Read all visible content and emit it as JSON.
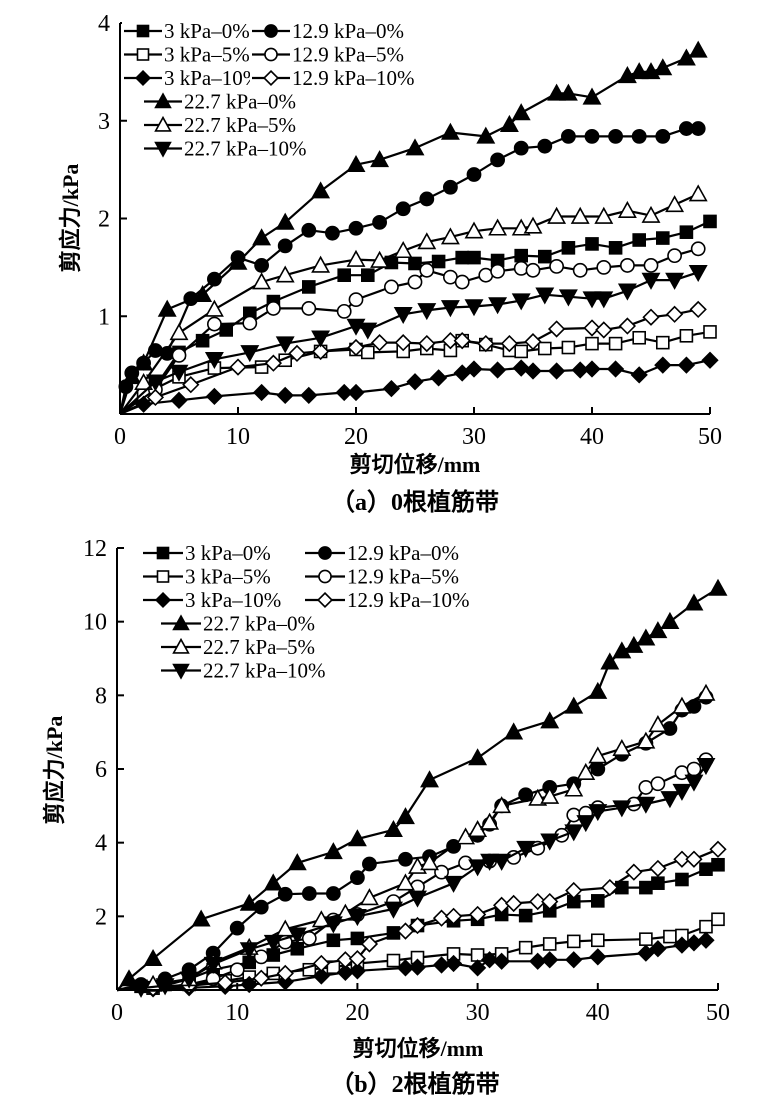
{
  "chart_data": [
    {
      "type": "line",
      "caption": "（a）0根植筋带",
      "xlabel": "剪切位移/mm",
      "ylabel": "剪应力/kPa",
      "xlim": [
        0,
        50
      ],
      "ylim": [
        0,
        4
      ],
      "xticks": [
        "0",
        "10",
        "20",
        "30",
        "40",
        "50"
      ],
      "yticks": [
        "1",
        "2",
        "3",
        "4"
      ],
      "xtick_values": [
        0,
        10,
        20,
        30,
        40,
        50
      ],
      "ytick_values": [
        1,
        2,
        3,
        4
      ],
      "legend": "top-left",
      "series": [
        {
          "name": "3 kPa–0%",
          "marker": "square-filled",
          "x": [
            0,
            3,
            5,
            7,
            9,
            11,
            13,
            16,
            19,
            21,
            23,
            25,
            27,
            29,
            30,
            32,
            34,
            36,
            38,
            40,
            42,
            44,
            46,
            48,
            50
          ],
          "y": [
            0,
            0.28,
            0.63,
            0.75,
            0.86,
            1.03,
            1.15,
            1.3,
            1.42,
            1.42,
            1.55,
            1.54,
            1.56,
            1.6,
            1.6,
            1.57,
            1.62,
            1.61,
            1.7,
            1.74,
            1.7,
            1.78,
            1.8,
            1.86,
            1.97
          ]
        },
        {
          "name": "3 kPa–5%",
          "marker": "square-open",
          "x": [
            0,
            2,
            5,
            8,
            12,
            14,
            17,
            20,
            21,
            24,
            26,
            28,
            29,
            31,
            33,
            34,
            36,
            38,
            40,
            42,
            44,
            46,
            48,
            50
          ],
          "y": [
            0,
            0.2,
            0.38,
            0.47,
            0.48,
            0.55,
            0.64,
            0.66,
            0.63,
            0.64,
            0.67,
            0.65,
            0.75,
            0.71,
            0.65,
            0.64,
            0.67,
            0.68,
            0.72,
            0.72,
            0.78,
            0.73,
            0.8,
            0.84
          ]
        },
        {
          "name": "3 kPa–10%",
          "marker": "diamond-filled",
          "x": [
            0,
            2,
            5,
            8,
            12,
            14,
            16,
            19,
            20,
            23,
            25,
            27,
            29,
            30,
            32,
            34,
            35,
            37,
            39,
            40,
            42,
            44,
            46,
            48,
            50
          ],
          "y": [
            0,
            0.1,
            0.14,
            0.18,
            0.22,
            0.19,
            0.19,
            0.22,
            0.22,
            0.26,
            0.33,
            0.37,
            0.42,
            0.46,
            0.45,
            0.47,
            0.44,
            0.44,
            0.45,
            0.46,
            0.46,
            0.4,
            0.5,
            0.5,
            0.55
          ]
        },
        {
          "name": "12.9 kPa–0%",
          "marker": "circle-filled",
          "x": [
            0,
            0.5,
            1,
            2,
            3,
            4,
            6,
            8,
            10,
            12,
            14,
            16,
            18,
            20,
            22,
            24,
            26,
            28,
            30,
            32,
            34,
            36,
            38,
            40,
            42,
            44,
            46,
            48,
            49
          ],
          "y": [
            0,
            0.28,
            0.42,
            0.52,
            0.65,
            0.62,
            1.18,
            1.38,
            1.6,
            1.52,
            1.72,
            1.88,
            1.85,
            1.9,
            1.96,
            2.1,
            2.2,
            2.32,
            2.45,
            2.6,
            2.72,
            2.74,
            2.84,
            2.84,
            2.84,
            2.84,
            2.84,
            2.92,
            2.92
          ]
        },
        {
          "name": "12.9 kPa–5%",
          "marker": "circle-open",
          "x": [
            0,
            3,
            5,
            8,
            11,
            13,
            16,
            19,
            20,
            23,
            25,
            26,
            28,
            29,
            31,
            32,
            34,
            35,
            37,
            39,
            41,
            43,
            45,
            47,
            49
          ],
          "y": [
            0,
            0.25,
            0.6,
            0.92,
            0.93,
            1.08,
            1.08,
            1.05,
            1.17,
            1.3,
            1.35,
            1.47,
            1.4,
            1.35,
            1.42,
            1.46,
            1.49,
            1.47,
            1.51,
            1.47,
            1.5,
            1.52,
            1.52,
            1.62,
            1.69
          ]
        },
        {
          "name": "12.9 kPa–10%",
          "marker": "diamond-open",
          "x": [
            0,
            3,
            6,
            10,
            13,
            15,
            17,
            20,
            22,
            24,
            26,
            28,
            29,
            31,
            33,
            35,
            37,
            40,
            41,
            43,
            45,
            47,
            49
          ],
          "y": [
            0,
            0.17,
            0.3,
            0.48,
            0.52,
            0.62,
            0.64,
            0.68,
            0.73,
            0.73,
            0.72,
            0.75,
            0.75,
            0.72,
            0.72,
            0.74,
            0.87,
            0.88,
            0.86,
            0.9,
            0.99,
            1.02,
            1.07
          ]
        },
        {
          "name": "22.7 kPa–0%",
          "marker": "triangle-up-filled",
          "x": [
            0,
            1,
            2,
            4,
            7,
            10,
            12,
            14,
            17,
            20,
            22,
            25,
            28,
            31,
            33,
            34,
            37,
            38,
            40,
            43,
            44,
            45,
            46,
            48,
            49
          ],
          "y": [
            0,
            0.38,
            0.52,
            1.07,
            1.22,
            1.55,
            1.8,
            1.96,
            2.28,
            2.55,
            2.6,
            2.72,
            2.88,
            2.84,
            2.96,
            3.08,
            3.28,
            3.28,
            3.24,
            3.46,
            3.5,
            3.5,
            3.54,
            3.64,
            3.72
          ]
        },
        {
          "name": "22.7 kPa–5%",
          "marker": "triangle-up-open",
          "x": [
            0,
            2,
            5,
            8,
            12,
            14,
            17,
            20,
            22,
            24,
            26,
            28,
            30,
            32,
            34,
            35,
            37,
            39,
            41,
            43,
            45,
            47,
            49
          ],
          "y": [
            0,
            0.32,
            0.83,
            1.07,
            1.35,
            1.42,
            1.52,
            1.58,
            1.57,
            1.67,
            1.76,
            1.81,
            1.87,
            1.9,
            1.9,
            1.92,
            2.02,
            2.02,
            2.02,
            2.08,
            2.03,
            2.14,
            2.25
          ]
        },
        {
          "name": "22.7 kPa–10%",
          "marker": "triangle-down-filled",
          "x": [
            0,
            3,
            5,
            8,
            11,
            14,
            17,
            20,
            21,
            24,
            26,
            28,
            30,
            32,
            34,
            36,
            38,
            40,
            41,
            43,
            45,
            47,
            49
          ],
          "y": [
            0,
            0.33,
            0.43,
            0.56,
            0.63,
            0.72,
            0.78,
            0.9,
            0.86,
            1.02,
            1.06,
            1.09,
            1.1,
            1.12,
            1.16,
            1.22,
            1.2,
            1.18,
            1.18,
            1.26,
            1.37,
            1.37,
            1.45
          ]
        }
      ]
    },
    {
      "type": "line",
      "caption": "（b）2根植筋带",
      "xlabel": "剪切位移/mm",
      "ylabel": "剪应力/kPa",
      "xlim": [
        0,
        50
      ],
      "ylim": [
        0,
        12
      ],
      "xticks": [
        "0",
        "10",
        "20",
        "30",
        "40",
        "50"
      ],
      "yticks": [
        "2",
        "4",
        "6",
        "8",
        "10",
        "12"
      ],
      "xtick_values": [
        0,
        10,
        20,
        30,
        40,
        50
      ],
      "ytick_values": [
        2,
        4,
        6,
        8,
        10,
        12
      ],
      "legend": "top-left",
      "series": [
        {
          "name": "3 kPa–0%",
          "marker": "square-filled",
          "x": [
            0,
            2,
            4,
            6,
            8,
            11,
            13,
            15,
            18,
            20,
            23,
            25,
            28,
            30,
            32,
            34,
            36,
            38,
            40,
            42,
            44,
            45,
            47,
            49,
            50
          ],
          "y": [
            0,
            0.1,
            0.15,
            0.3,
            0.55,
            0.75,
            0.95,
            1.12,
            1.35,
            1.4,
            1.55,
            1.75,
            1.88,
            1.92,
            2.05,
            2.02,
            2.15,
            2.4,
            2.42,
            2.78,
            2.78,
            2.9,
            3.0,
            3.28,
            3.4
          ]
        },
        {
          "name": "3 kPa–5%",
          "marker": "square-open",
          "x": [
            0,
            3,
            6,
            9,
            11,
            13,
            16,
            18,
            20,
            23,
            25,
            28,
            30,
            32,
            34,
            36,
            38,
            40,
            44,
            46,
            47,
            49,
            50
          ],
          "y": [
            0,
            0.05,
            0.15,
            0.25,
            0.35,
            0.45,
            0.55,
            0.62,
            0.72,
            0.8,
            0.88,
            0.98,
            0.95,
            0.98,
            1.15,
            1.25,
            1.32,
            1.35,
            1.38,
            1.45,
            1.48,
            1.72,
            1.92
          ]
        },
        {
          "name": "3 kPa–10%",
          "marker": "diamond-filled",
          "x": [
            0,
            3,
            6,
            9,
            11,
            14,
            17,
            19,
            20,
            24,
            25,
            27,
            28,
            30,
            31,
            32,
            35,
            36,
            38,
            40,
            44,
            45,
            47,
            48,
            49
          ],
          "y": [
            0,
            0.03,
            0.06,
            0.1,
            0.15,
            0.22,
            0.38,
            0.48,
            0.52,
            0.6,
            0.62,
            0.68,
            0.72,
            0.6,
            0.82,
            0.78,
            0.78,
            0.82,
            0.82,
            0.9,
            1.0,
            1.12,
            1.22,
            1.28,
            1.35
          ]
        },
        {
          "name": "12.9 kPa–0%",
          "marker": "circle-filled",
          "x": [
            0,
            2,
            4,
            6,
            8,
            10,
            12,
            14,
            16,
            18,
            20,
            21,
            24,
            26,
            28,
            30,
            31,
            32,
            34,
            36,
            38,
            40,
            42,
            44,
            46,
            47,
            48,
            49
          ],
          "y": [
            0,
            0.15,
            0.3,
            0.55,
            1.0,
            1.68,
            2.25,
            2.6,
            2.62,
            2.62,
            3.05,
            3.42,
            3.55,
            3.62,
            3.9,
            4.2,
            4.5,
            5.0,
            5.3,
            5.5,
            5.6,
            6.0,
            6.4,
            6.7,
            7.1,
            7.6,
            7.7,
            7.95
          ]
        },
        {
          "name": "12.9 kPa–5%",
          "marker": "circle-open",
          "x": [
            0,
            3,
            6,
            8,
            10,
            12,
            14,
            16,
            18,
            20,
            23,
            25,
            27,
            29,
            31,
            33,
            35,
            37,
            38,
            39,
            40,
            43,
            44,
            45,
            47,
            48,
            49
          ],
          "y": [
            0,
            0.06,
            0.15,
            0.3,
            0.55,
            0.9,
            1.3,
            1.4,
            1.9,
            2.05,
            2.4,
            2.8,
            3.2,
            3.45,
            3.5,
            3.6,
            3.85,
            4.2,
            4.75,
            4.8,
            4.95,
            5.05,
            5.5,
            5.6,
            5.9,
            6.0,
            6.25
          ]
        },
        {
          "name": "12.9 kPa–10%",
          "marker": "diamond-open",
          "x": [
            0,
            3,
            6,
            9,
            12,
            14,
            17,
            19,
            20,
            21,
            24,
            25,
            27,
            28,
            30,
            32,
            33,
            35,
            36,
            38,
            41,
            43,
            45,
            47,
            48,
            50
          ],
          "y": [
            0,
            0.05,
            0.12,
            0.2,
            0.32,
            0.45,
            0.72,
            0.82,
            0.85,
            1.25,
            1.6,
            1.75,
            1.95,
            2.0,
            2.05,
            2.3,
            2.35,
            2.4,
            2.4,
            2.7,
            2.78,
            3.2,
            3.3,
            3.55,
            3.55,
            3.82
          ]
        },
        {
          "name": "22.7 kPa–0%",
          "marker": "triangle-up-filled",
          "x": [
            0,
            1,
            3,
            7,
            11,
            13,
            15,
            18,
            20,
            23,
            24,
            26,
            30,
            33,
            36,
            38,
            40,
            41,
            42,
            43,
            44,
            45,
            46,
            48,
            50
          ],
          "y": [
            0,
            0.3,
            0.85,
            1.92,
            2.35,
            2.9,
            3.45,
            3.75,
            4.1,
            4.35,
            4.7,
            5.7,
            6.3,
            7.0,
            7.3,
            7.7,
            8.1,
            8.9,
            9.2,
            9.35,
            9.55,
            9.75,
            10.0,
            10.5,
            10.9
          ]
        },
        {
          "name": "22.7 kPa–5%",
          "marker": "triangle-up-open",
          "x": [
            0,
            3,
            6,
            8,
            11,
            14,
            17,
            19,
            21,
            24,
            25,
            26,
            29,
            30,
            31,
            32,
            35,
            36,
            38,
            39,
            40,
            42,
            44,
            45,
            47,
            49
          ],
          "y": [
            0,
            0.15,
            0.3,
            0.75,
            1.15,
            1.65,
            1.9,
            2.08,
            2.5,
            2.9,
            3.35,
            3.45,
            4.15,
            4.35,
            4.55,
            5.0,
            5.2,
            5.25,
            5.45,
            5.9,
            6.35,
            6.55,
            6.75,
            7.2,
            7.7,
            8.05
          ]
        },
        {
          "name": "22.7 kPa–10%",
          "marker": "triangle-down-filled",
          "x": [
            0,
            2,
            4,
            6,
            8,
            11,
            13,
            15,
            18,
            20,
            23,
            25,
            28,
            30,
            31,
            32,
            34,
            36,
            38,
            39,
            40,
            42,
            44,
            46,
            47,
            48,
            49
          ],
          "y": [
            0,
            0.05,
            0.12,
            0.3,
            0.7,
            1.1,
            1.3,
            1.5,
            1.8,
            2.0,
            2.2,
            2.5,
            2.9,
            3.35,
            3.5,
            3.5,
            3.85,
            4.05,
            4.3,
            4.55,
            4.85,
            4.95,
            5.05,
            5.2,
            5.4,
            5.65,
            6.1
          ]
        }
      ]
    }
  ]
}
